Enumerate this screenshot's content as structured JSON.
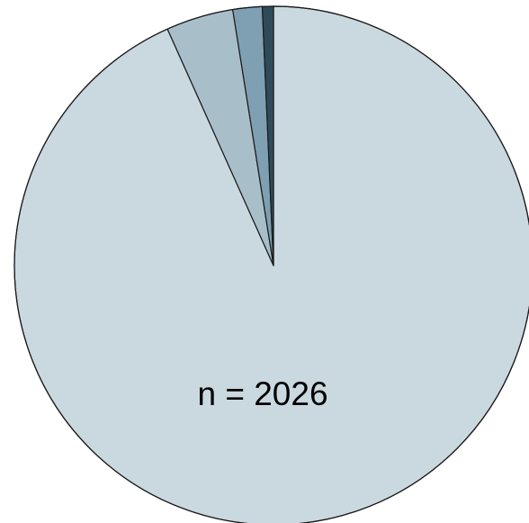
{
  "chart_data": {
    "type": "pie",
    "start": "top",
    "direction": "clockwise",
    "slices": [
      {
        "value": 1890,
        "color": "#cad8e0"
      },
      {
        "value": 85,
        "color": "#a8bfca"
      },
      {
        "value": 37,
        "color": "#7f9fb2"
      },
      {
        "value": 14,
        "color": "#2f4b5a"
      }
    ],
    "annotation": "n = 2026",
    "legend": "none"
  }
}
